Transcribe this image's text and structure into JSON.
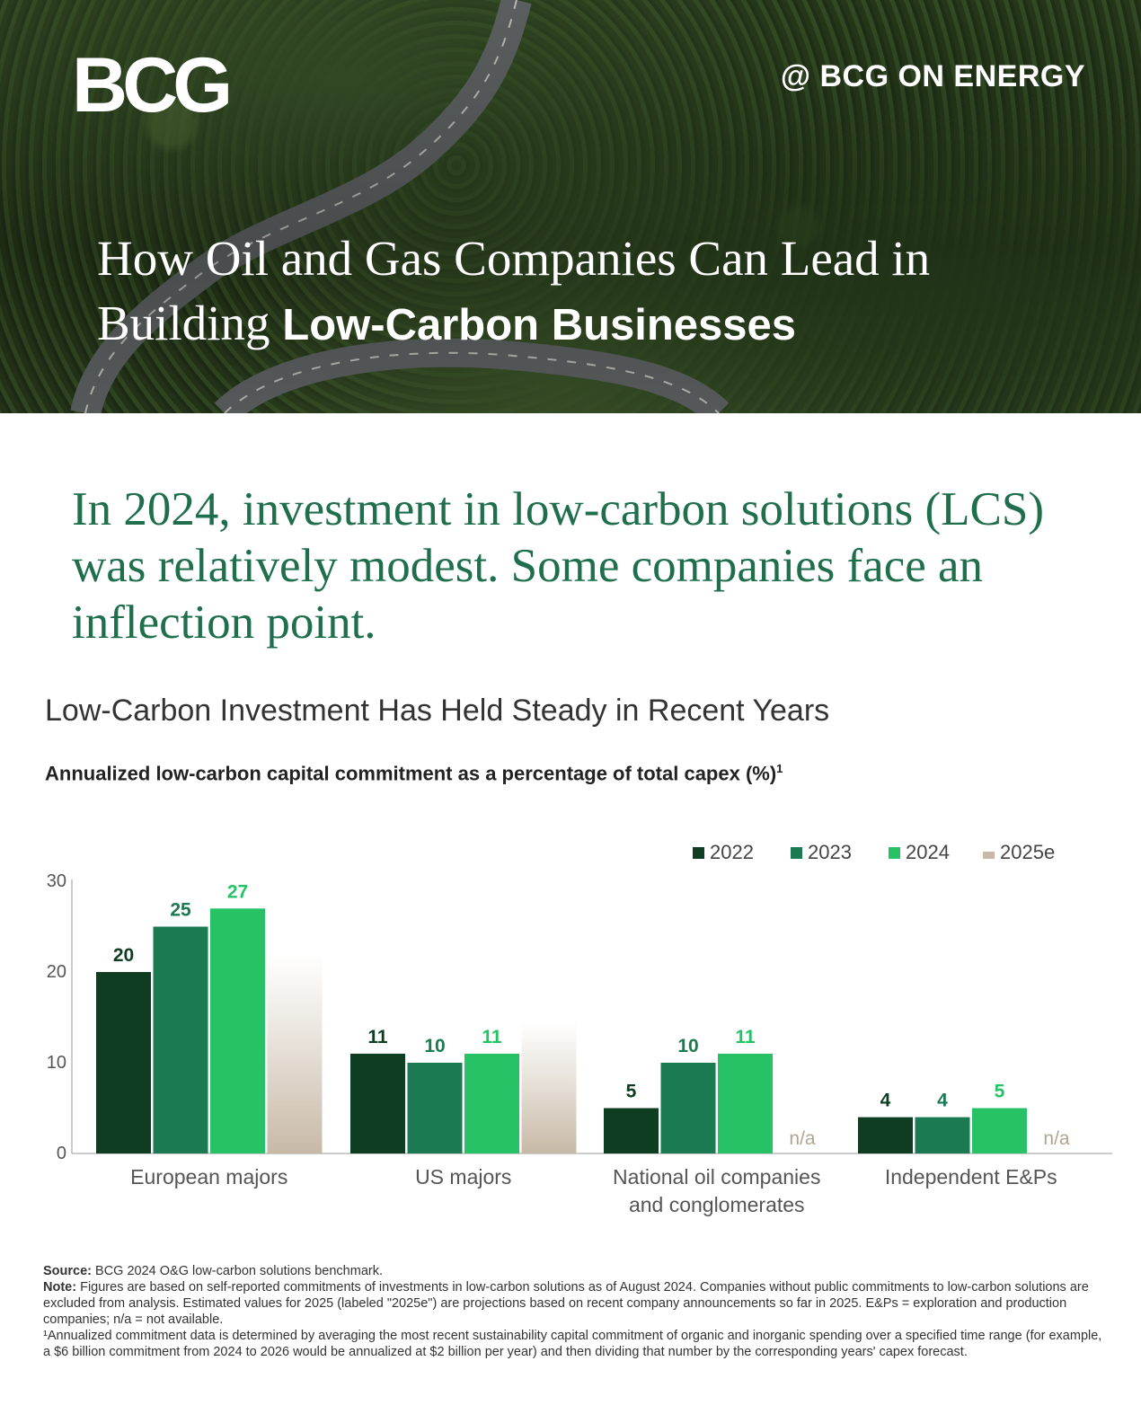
{
  "header": {
    "logo": "BCG",
    "handle": "@ BCG ON ENERGY",
    "title_regular": "How Oil and Gas Companies Can Lead in Building ",
    "title_bold": "Low-Carbon Businesses"
  },
  "headline": "In 2024, investment in low-carbon solutions (LCS) was relatively modest. Some companies face an inflection point.",
  "colors": {
    "2022": "#0f3d22",
    "2023": "#1b7a52",
    "2024": "#28c266",
    "2025e": "#c7b9a6",
    "headline": "#1f6e4c"
  },
  "chart_data": {
    "type": "bar",
    "title": "Low-Carbon Investment Has Held Steady in Recent Years",
    "subtitle": "Annualized low-carbon capital commitment as a percentage of total capex (%)",
    "subtitle_sup": "1",
    "categories": [
      "European majors",
      "US majors",
      "National oil companies and conglomerates",
      "Independent E&Ps"
    ],
    "category_lines": [
      [
        "European majors"
      ],
      [
        "US majors"
      ],
      [
        "National oil companies",
        "and conglomerates"
      ],
      [
        "Independent E&Ps"
      ]
    ],
    "series": [
      {
        "name": "2022",
        "values": [
          20,
          11,
          5,
          4
        ]
      },
      {
        "name": "2023",
        "values": [
          25,
          10,
          10,
          4
        ]
      },
      {
        "name": "2024",
        "values": [
          27,
          11,
          11,
          5
        ]
      },
      {
        "name": "2025e",
        "values": [
          22,
          14.5,
          null,
          null
        ]
      }
    ],
    "data_labels": [
      [
        "20",
        "11",
        "5",
        "4"
      ],
      [
        "25",
        "10",
        "10",
        "4"
      ],
      [
        "27",
        "11",
        "11",
        "5"
      ],
      [
        "",
        "",
        "n/a",
        "n/a"
      ]
    ],
    "yticks": [
      "0",
      "10",
      "20",
      "30"
    ],
    "ylim": [
      0,
      30
    ],
    "legend_position": "top-right",
    "grid": false
  },
  "footnotes": {
    "source_label": "Source:",
    "source": "BCG 2024 O&G low-carbon solutions benchmark.",
    "note_label": "Note:",
    "note": "Figures are based on self-reported commitments of investments in low-carbon solutions as of August 2024. Companies without public commitments to low-carbon solutions are excluded from analysis. Estimated values for 2025 (labeled \"2025e\") are projections based on recent company announcements so far in 2025. E&Ps = exploration and production companies; n/a = not available.",
    "fn1": "¹Annualized commitment data is determined by averaging the most recent sustainability capital commitment of organic and inorganic spending over a specified time range (for example, a $6 billion commitment from 2024 to 2026 would be annualized at $2 billion per year) and then dividing that number by the corresponding years' capex forecast."
  }
}
